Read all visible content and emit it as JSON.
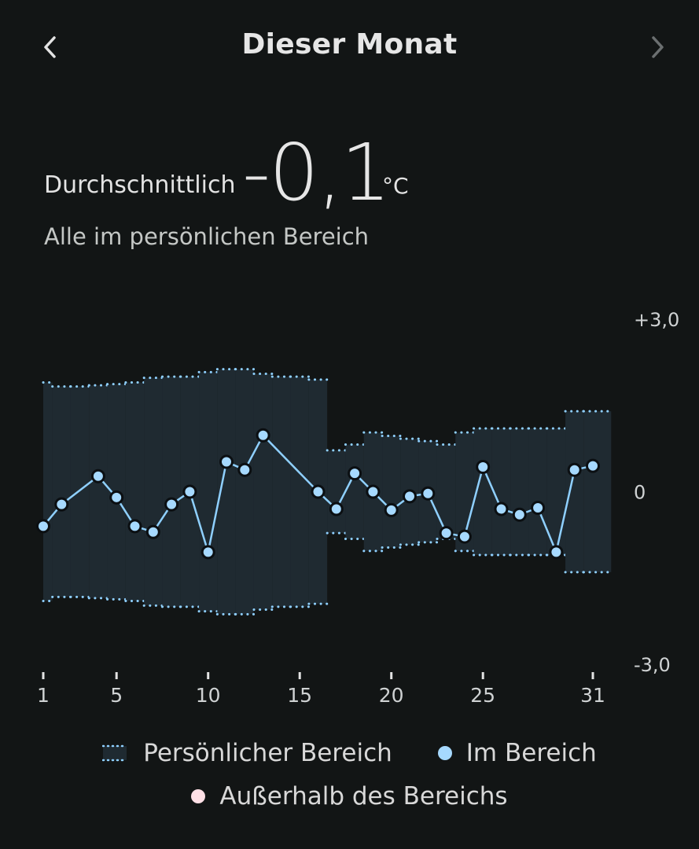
{
  "header": {
    "title": "Dieser Monat",
    "prev_icon": "chevron-left-icon",
    "next_icon": "chevron-right-icon"
  },
  "summary": {
    "label": "Durchschnittlich",
    "value": "-0,1",
    "unit": "°C",
    "subtitle": "Alle im persönlichen Bereich"
  },
  "colors": {
    "background": "#121515",
    "band_fill": "#1f2a31",
    "band_dots": "#8fd0ff",
    "line": "#8fd0ff",
    "point_in_range": "#a6d9ff",
    "point_stroke": "#0b0f12",
    "out_of_range": "#ffe0e6",
    "tick_text": "#cfd2d3",
    "nav_prev": "#e3e3e3",
    "nav_next": "#6b6f70"
  },
  "chart_data": {
    "type": "line",
    "ylim": [
      -3,
      3
    ],
    "y_tick_labels": [
      "+3,0",
      "0",
      "-3,0"
    ],
    "y_tick_values": [
      3,
      0,
      -3
    ],
    "x_ticks": [
      1,
      5,
      10,
      15,
      20,
      25,
      31
    ],
    "x_tick_labels": [
      "1",
      "5",
      "10",
      "15",
      "20",
      "25",
      "31"
    ],
    "days": [
      1,
      2,
      3,
      4,
      5,
      6,
      7,
      8,
      9,
      10,
      11,
      12,
      13,
      14,
      15,
      16,
      17,
      18,
      19,
      20,
      21,
      22,
      23,
      24,
      25,
      26,
      27,
      28,
      29,
      30,
      31
    ],
    "series": [
      {
        "name": "Persönlicher Bereich",
        "kind": "band",
        "upper": [
          1.9,
          1.83,
          1.83,
          1.85,
          1.87,
          1.9,
          1.98,
          2.0,
          2.0,
          2.08,
          2.13,
          2.13,
          2.05,
          2.0,
          2.0,
          1.95,
          0.72,
          0.82,
          1.03,
          0.97,
          0.92,
          0.88,
          0.82,
          1.03,
          1.1,
          1.1,
          1.1,
          1.1,
          1.1,
          1.4,
          1.4
        ],
        "lower": [
          -1.9,
          -1.83,
          -1.83,
          -1.85,
          -1.87,
          -1.9,
          -1.98,
          -2.0,
          -2.0,
          -2.08,
          -2.13,
          -2.13,
          -2.05,
          -2.0,
          -2.0,
          -1.95,
          -0.72,
          -0.82,
          -1.03,
          -0.97,
          -0.92,
          -0.88,
          -0.82,
          -1.03,
          -1.1,
          -1.1,
          -1.1,
          -1.1,
          -1.1,
          -1.4,
          -1.4
        ]
      },
      {
        "name": "Im Bereich",
        "kind": "points",
        "values": [
          -0.6,
          -0.22,
          null,
          0.27,
          -0.1,
          -0.6,
          -0.7,
          -0.22,
          0.0,
          -1.05,
          0.52,
          0.38,
          0.98,
          null,
          null,
          0.0,
          -0.3,
          0.32,
          0.0,
          -0.32,
          -0.08,
          -0.03,
          -0.72,
          -0.78,
          0.43,
          -0.3,
          -0.4,
          -0.28,
          -1.05,
          0.38,
          0.45
        ]
      }
    ],
    "legend": [
      {
        "label": "Persönlicher Bereich",
        "kind": "band"
      },
      {
        "label": "Im Bereich",
        "kind": "dot",
        "color": "#a6d9ff"
      },
      {
        "label": "Außerhalb des Bereichs",
        "kind": "dot",
        "color": "#ffe0e6"
      }
    ]
  }
}
